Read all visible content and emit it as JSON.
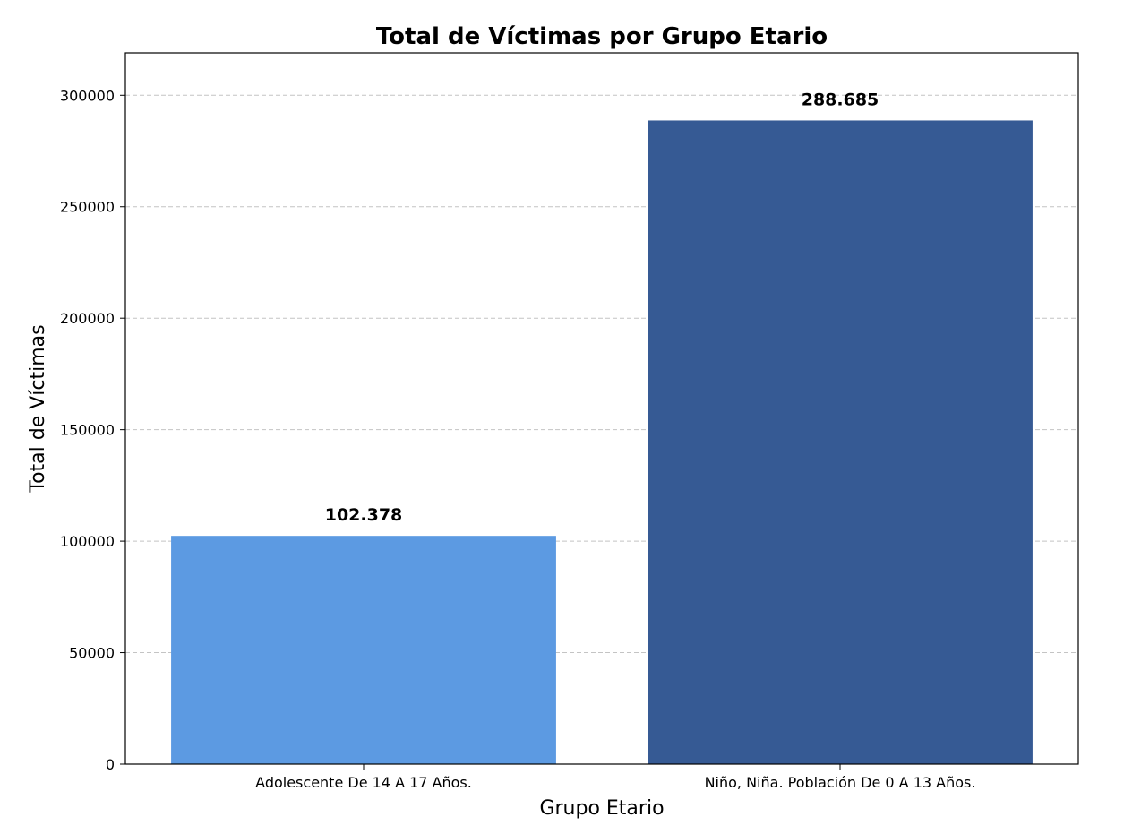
{
  "chart_data": {
    "type": "bar",
    "title": "Total de Víctimas por Grupo Etario",
    "xlabel": "Grupo Etario",
    "ylabel": "Total de Víctimas",
    "categories": [
      "Adolescente De 14 A 17 Años.",
      "Niño, Niña. Población De 0 A 13 Años."
    ],
    "values": [
      102378,
      288685
    ],
    "data_labels": [
      "102.378",
      "288.685"
    ],
    "colors": [
      "#5c9ae2",
      "#365a94"
    ],
    "ylim": [
      0,
      319000
    ],
    "yticks": [
      0,
      50000,
      100000,
      150000,
      200000,
      250000,
      300000
    ],
    "ytick_labels": [
      "0",
      "50000",
      "100000",
      "150000",
      "200000",
      "250000",
      "300000"
    ],
    "grid": "y-dashed"
  }
}
